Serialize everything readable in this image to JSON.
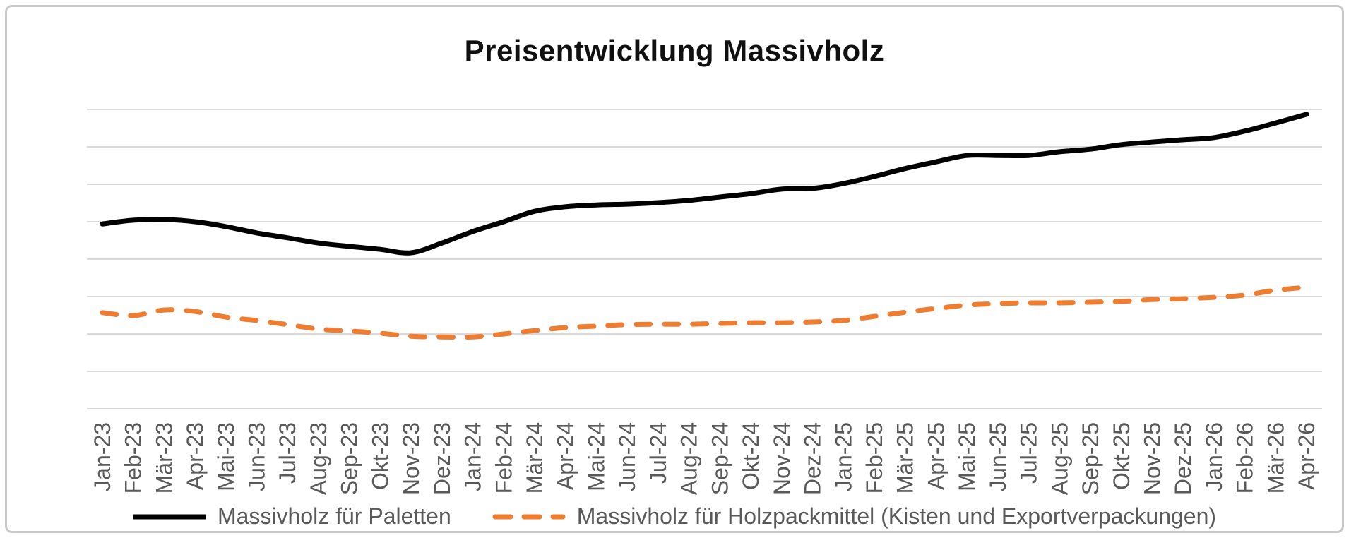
{
  "chart_data": {
    "type": "line",
    "title": "Preisentwicklung Massivholz",
    "categories": [
      "Jan-23",
      "Feb-23",
      "Mär-23",
      "Apr-23",
      "Mai-23",
      "Jun-23",
      "Jul-23",
      "Aug-23",
      "Sep-23",
      "Okt-23",
      "Nov-23",
      "Dez-23",
      "Jan-24",
      "Feb-24",
      "Mär-24",
      "Apr-24",
      "Mai-24",
      "Jun-24",
      "Jul-24",
      "Aug-24",
      "Sep-24",
      "Okt-24",
      "Nov-24",
      "Dez-24",
      "Jan-25",
      "Feb-25",
      "Mär-25",
      "Apr-25",
      "Mai-25",
      "Jun-25",
      "Jul-25",
      "Aug-25",
      "Sep-25",
      "Okt-25",
      "Nov-25",
      "Dez-25",
      "Jan-26",
      "Feb-26",
      "Mär-26",
      "Apr-26"
    ],
    "series": [
      {
        "name": "Massivholz für Paletten",
        "color": "#000000",
        "line_style": "solid",
        "values": [
          49.4,
          50.4,
          50.6,
          50.0,
          48.7,
          47.0,
          45.7,
          44.3,
          43.4,
          42.6,
          41.7,
          44.3,
          47.4,
          50.0,
          52.8,
          54.0,
          54.5,
          54.7,
          55.1,
          55.7,
          56.6,
          57.5,
          58.7,
          58.9,
          60.2,
          62.1,
          64.2,
          66.0,
          67.7,
          67.7,
          67.7,
          68.7,
          69.4,
          70.6,
          71.3,
          71.9,
          72.5,
          74.2,
          76.4,
          78.7
        ]
      },
      {
        "name": "Massivholz für Holzpackmittel (Kisten und Exportverpackungen)",
        "color": "#ED7D31",
        "line_style": "dashed",
        "values": [
          25.7,
          24.9,
          26.4,
          26.0,
          24.5,
          23.6,
          22.5,
          21.3,
          20.8,
          20.2,
          19.4,
          19.2,
          19.2,
          20.0,
          20.9,
          21.7,
          22.1,
          22.5,
          22.6,
          22.6,
          22.8,
          23.0,
          23.0,
          23.2,
          23.6,
          24.7,
          25.8,
          26.8,
          27.7,
          28.1,
          28.3,
          28.3,
          28.5,
          28.7,
          29.2,
          29.4,
          29.8,
          30.4,
          31.7,
          32.5
        ]
      }
    ],
    "xlabel": "",
    "ylabel": "",
    "y_axis_tick_labels": "none",
    "ylim": [
      0,
      80
    ],
    "gridline_step": 10,
    "grid": true,
    "smooth_lines": true,
    "legend_position": "bottom",
    "colors": {
      "gridline": "#D9D9D9",
      "axis_text": "#595959",
      "legend_text": "#595959",
      "title_text": "#101010",
      "frame_border": "#C9C9C9"
    }
  }
}
